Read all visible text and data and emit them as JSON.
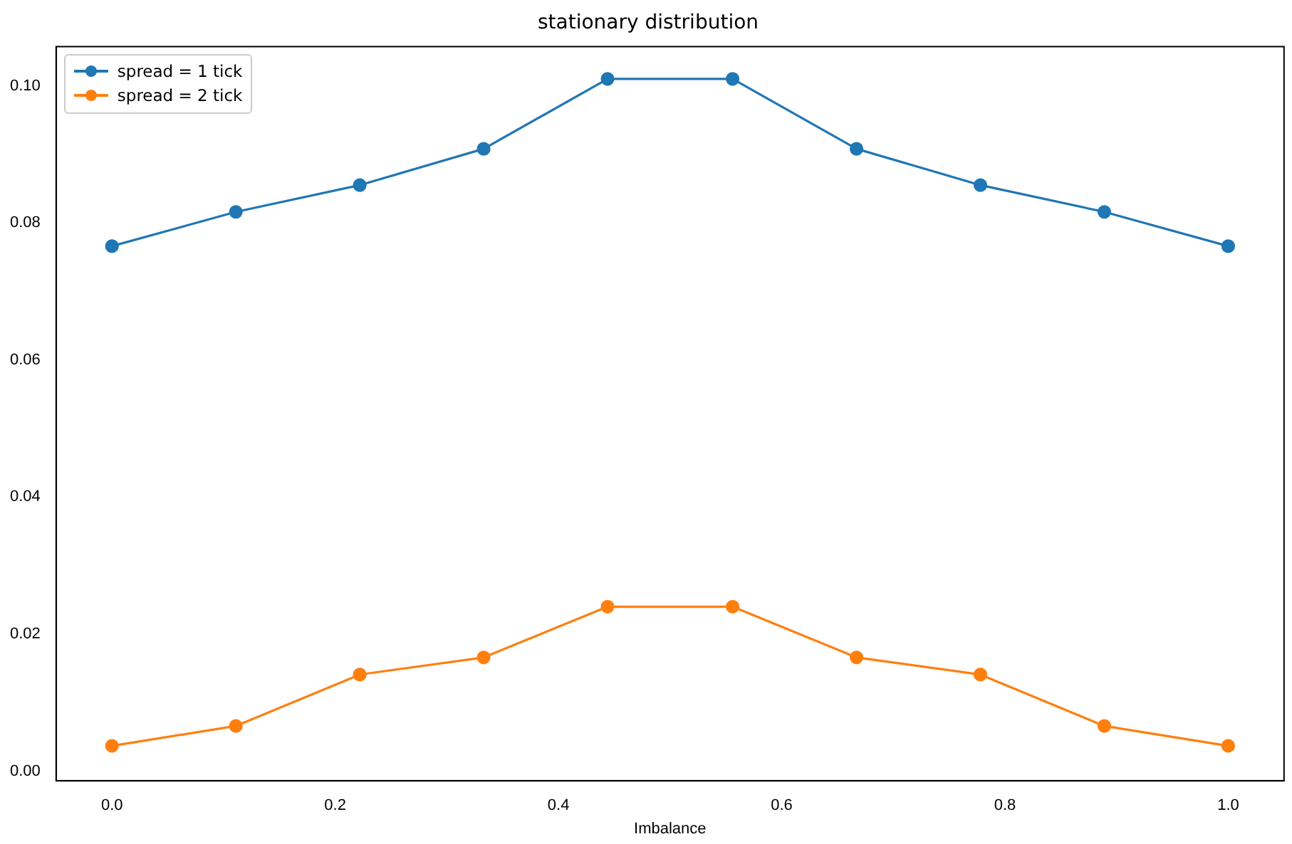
{
  "chart_data": {
    "type": "line",
    "title": "stationary distribution",
    "xlabel": "Imbalance",
    "x": [
      0,
      0.111,
      0.222,
      0.333,
      0.444,
      0.556,
      0.667,
      0.778,
      0.889,
      1.0
    ],
    "series": [
      {
        "name": "spread = 1 tick",
        "color": "#1f77b4",
        "values": [
          0.0766,
          0.0816,
          0.0855,
          0.0908,
          0.101,
          0.101,
          0.0908,
          0.0855,
          0.0816,
          0.0766
        ]
      },
      {
        "name": "spread = 2 tick",
        "color": "#ff7f0e",
        "values": [
          0.0037,
          0.0066,
          0.0141,
          0.0166,
          0.024,
          0.024,
          0.0166,
          0.0141,
          0.0066,
          0.0037
        ]
      }
    ],
    "xlim": [
      -0.05,
      1.05
    ],
    "xticks": [
      {
        "value": 0,
        "label": "0.0"
      },
      {
        "value": 0.2,
        "label": "0.2"
      },
      {
        "value": 0.4,
        "label": "0.4"
      },
      {
        "value": 0.6,
        "label": "0.6"
      },
      {
        "value": 0.8,
        "label": "0.8"
      },
      {
        "value": 1,
        "label": "1.0"
      }
    ],
    "ylim": [
      -0.0014,
      0.1057
    ],
    "yticks": [
      {
        "value": 0,
        "label": "0.00"
      },
      {
        "value": 0.02,
        "label": "0.02"
      },
      {
        "value": 0.04,
        "label": "0.04"
      },
      {
        "value": 0.06,
        "label": "0.06"
      },
      {
        "value": 0.08,
        "label": "0.08"
      },
      {
        "value": 0.1,
        "label": "0.10"
      }
    ],
    "grid": false,
    "legend": "top left",
    "marker": "circle",
    "line_style": "solid"
  }
}
